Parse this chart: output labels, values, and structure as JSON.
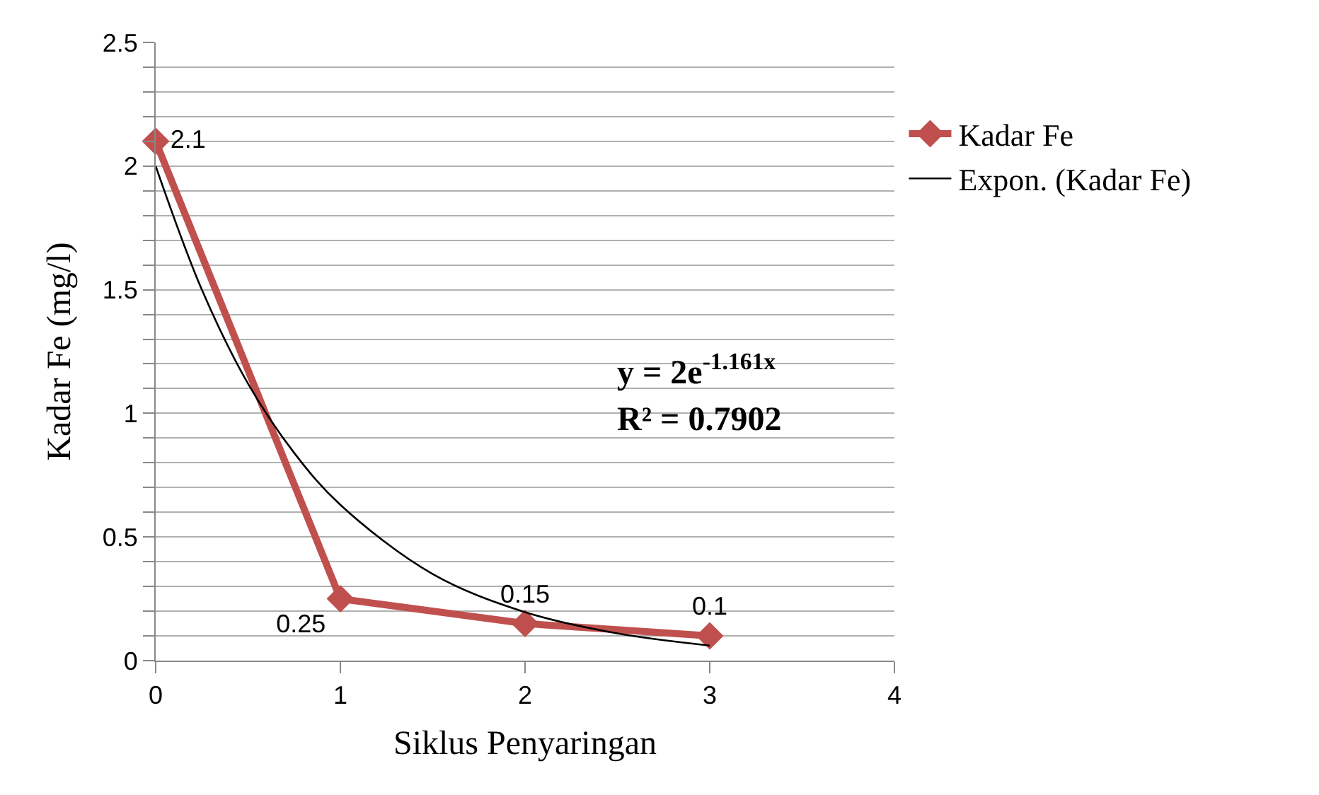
{
  "chart_data": {
    "type": "line",
    "xlabel": "Siklus Penyaringan",
    "ylabel": "Kadar Fe (mg/l)",
    "x": [
      0,
      1,
      2,
      3
    ],
    "series": [
      {
        "name": "Kadar Fe",
        "color": "#c0504d",
        "values": [
          2.1,
          0.25,
          0.15,
          0.1
        ],
        "marker": "diamond",
        "data_labels": true
      },
      {
        "name": "Expon. (Kadar Fe)",
        "color": "#000000",
        "type": "line",
        "marker": "none",
        "x": [
          0,
          0.25,
          0.5,
          0.75,
          1,
          1.5,
          2,
          2.5,
          3
        ],
        "values": [
          2.0,
          1.5,
          1.12,
          0.84,
          0.63,
          0.35,
          0.196,
          0.11,
          0.061
        ]
      }
    ],
    "xlim": [
      0,
      4
    ],
    "xticks": [
      0,
      1,
      2,
      3,
      4
    ],
    "ylim": [
      0,
      2.5
    ],
    "yticks": [
      0,
      {
        "value": 0.1,
        "label": null
      },
      {
        "value": 0.2,
        "label": null
      },
      {
        "value": 0.3,
        "label": null
      },
      {
        "value": 0.4,
        "label": null
      },
      0.5,
      {
        "value": 0.6,
        "label": null
      },
      {
        "value": 0.7,
        "label": null
      },
      {
        "value": 0.8,
        "label": null
      },
      {
        "value": 0.9,
        "label": null
      },
      1,
      {
        "value": 1.1,
        "label": null
      },
      {
        "value": 1.2,
        "label": null
      },
      {
        "value": 1.3,
        "label": null
      },
      {
        "value": 1.4,
        "label": null
      },
      1.5,
      {
        "value": 1.6,
        "label": null
      },
      {
        "value": 1.7,
        "label": null
      },
      {
        "value": 1.8,
        "label": null
      },
      {
        "value": 1.9,
        "label": null
      },
      2,
      {
        "value": 2.1,
        "label": null
      },
      {
        "value": 2.2,
        "label": null
      },
      {
        "value": 2.3,
        "label": null
      },
      {
        "value": 2.4,
        "label": null
      },
      2.5
    ],
    "annotations": [
      "y = 2e$^{-1.161x}$",
      "R² = 0.7902"
    ],
    "grid": "y",
    "legend": "right"
  }
}
